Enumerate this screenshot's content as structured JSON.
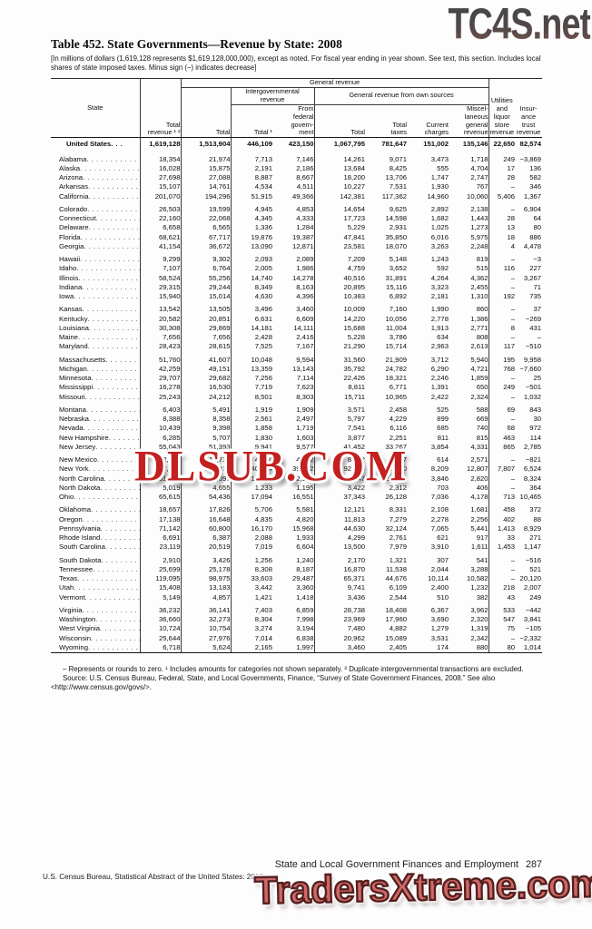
{
  "watermarks": {
    "top": "TC4S.net",
    "middle": "DLSUB.COM",
    "bottom": "TradersXtreme.com"
  },
  "title": "Table 452. State Governments—Revenue by State: 2008",
  "subtitle": "[In millions of dollars (1,619,128 represents $1,619,128,000,000), except as noted. For fiscal year ending in year shown. See text, this section. Includes local shares of state imposed taxes. Minus sign (−) indicates decrease]",
  "table": {
    "headers": {
      "state": "State",
      "total_revenue": "Total\nrevenue ¹ ²",
      "general_revenue": "General revenue",
      "general_total": "Total",
      "intergovernmental": "Intergovernmental\nrevenue",
      "intergov_total": "Total ¹",
      "from_federal": "From\nfederal\ngovern-\nment",
      "own_sources": "General revenue from own sources",
      "own_total": "Total",
      "total_taxes": "Total\ntaxes",
      "current_charges": "Current\ncharges",
      "misc_general": "Miscel-\nlaneous\ngeneral\nrevenue",
      "utilities": "Utilities\nand\nliquor\nstore\nrevenue",
      "insurance_trust": "Insur-\nance\ntrust\nrevenue"
    },
    "us_row": [
      "United States",
      "1,619,128",
      "1,513,904",
      "446,109",
      "423,150",
      "1,067,795",
      "781,647",
      "151,002",
      "135,146",
      "22,650",
      "82,574"
    ],
    "groups": [
      [
        [
          "Alabama",
          "18,354",
          "21,974",
          "7,713",
          "7,146",
          "14,261",
          "9,071",
          "3,473",
          "1,718",
          "249",
          "−3,869"
        ],
        [
          "Alaska",
          "16,028",
          "15,875",
          "2,191",
          "2,186",
          "13,684",
          "8,425",
          "555",
          "4,704",
          "17",
          "136"
        ],
        [
          "Arizona",
          "27,698",
          "27,088",
          "8,887",
          "8,667",
          "18,200",
          "13,706",
          "1,747",
          "2,747",
          "28",
          "582"
        ],
        [
          "Arkansas",
          "15,107",
          "14,761",
          "4,534",
          "4,511",
          "10,227",
          "7,531",
          "1,930",
          "767",
          "–",
          "346"
        ],
        [
          "California",
          "201,070",
          "194,296",
          "51,915",
          "49,366",
          "142,381",
          "117,362",
          "14,960",
          "10,060",
          "5,406",
          "1,367"
        ]
      ],
      [
        [
          "Colorado",
          "26,503",
          "19,599",
          "4,945",
          "4,853",
          "14,654",
          "9,625",
          "2,892",
          "2,138",
          "–",
          "6,904"
        ],
        [
          "Connecticut",
          "22,160",
          "22,068",
          "4,345",
          "4,333",
          "17,723",
          "14,598",
          "1,682",
          "1,443",
          "28",
          "64"
        ],
        [
          "Delaware",
          "6,658",
          "6,565",
          "1,336",
          "1,284",
          "5,229",
          "2,931",
          "1,025",
          "1,273",
          "13",
          "80"
        ],
        [
          "Florida",
          "68,621",
          "67,717",
          "19,876",
          "19,387",
          "47,841",
          "35,850",
          "6,016",
          "5,975",
          "18",
          "886"
        ],
        [
          "Georgia",
          "41,154",
          "36,672",
          "13,090",
          "12,871",
          "23,581",
          "18,070",
          "3,263",
          "2,248",
          "4",
          "4,478"
        ]
      ],
      [
        [
          "Hawaii",
          "9,299",
          "9,302",
          "2,093",
          "2,089",
          "7,209",
          "5,148",
          "1,243",
          "819",
          "–",
          "−3"
        ],
        [
          "Idaho",
          "7,107",
          "6,764",
          "2,005",
          "1,986",
          "4,759",
          "3,652",
          "592",
          "515",
          "116",
          "227"
        ],
        [
          "Illinois",
          "58,524",
          "55,256",
          "14,740",
          "14,278",
          "40,516",
          "31,891",
          "4,264",
          "4,362",
          "–",
          "3,267"
        ],
        [
          "Indiana",
          "29,315",
          "29,244",
          "8,349",
          "8,163",
          "20,895",
          "15,116",
          "3,323",
          "2,455",
          "–",
          "71"
        ],
        [
          "Iowa",
          "15,940",
          "15,014",
          "4,630",
          "4,396",
          "10,383",
          "6,892",
          "2,181",
          "1,310",
          "192",
          "735"
        ]
      ],
      [
        [
          "Kansas",
          "13,542",
          "13,505",
          "3,496",
          "3,460",
          "10,009",
          "7,160",
          "1,990",
          "860",
          "–",
          "37"
        ],
        [
          "Kentucky",
          "20,582",
          "20,851",
          "6,631",
          "6,609",
          "14,220",
          "10,056",
          "2,778",
          "1,386",
          "–",
          "−269"
        ],
        [
          "Louisiana",
          "30,308",
          "29,869",
          "14,181",
          "14,111",
          "15,688",
          "11,004",
          "1,913",
          "2,771",
          "8",
          "431"
        ],
        [
          "Maine",
          "7,656",
          "7,656",
          "2,428",
          "2,416",
          "5,228",
          "3,786",
          "634",
          "808",
          "–",
          "–"
        ],
        [
          "Maryland",
          "28,423",
          "28,815",
          "7,525",
          "7,167",
          "21,290",
          "15,714",
          "2,963",
          "2,613",
          "117",
          "−510"
        ]
      ],
      [
        [
          "Massachusetts",
          "51,760",
          "41,607",
          "10,048",
          "9,594",
          "31,560",
          "21,909",
          "3,712",
          "5,940",
          "195",
          "9,958"
        ],
        [
          "Michigan",
          "42,259",
          "49,151",
          "13,359",
          "13,143",
          "35,792",
          "24,782",
          "6,290",
          "4,721",
          "768",
          "−7,660"
        ],
        [
          "Minnesota",
          "29,707",
          "29,682",
          "7,256",
          "7,114",
          "22,426",
          "18,321",
          "2,246",
          "1,859",
          "–",
          "25"
        ],
        [
          "Mississippi",
          "16,278",
          "16,530",
          "7,719",
          "7,623",
          "8,811",
          "6,771",
          "1,391",
          "650",
          "249",
          "−501"
        ],
        [
          "Missouri",
          "25,243",
          "24,212",
          "8,501",
          "8,303",
          "15,711",
          "10,965",
          "2,422",
          "2,324",
          "–",
          "1,032"
        ]
      ],
      [
        [
          "Montana",
          "6,403",
          "5,491",
          "1,919",
          "1,909",
          "3,571",
          "2,458",
          "525",
          "588",
          "69",
          "843"
        ],
        [
          "Nebraska",
          "8,388",
          "8,358",
          "2,561",
          "2,497",
          "5,797",
          "4,229",
          "899",
          "669",
          "–",
          "30"
        ],
        [
          "Nevada",
          "10,439",
          "9,398",
          "1,858",
          "1,719",
          "7,541",
          "6,116",
          "685",
          "740",
          "68",
          "972"
        ],
        [
          "New Hampshire",
          "6,285",
          "5,707",
          "1,830",
          "1,603",
          "3,877",
          "2,251",
          "811",
          "815",
          "463",
          "114"
        ],
        [
          "New Jersey",
          "55,043",
          "51,393",
          "9,941",
          "9,577",
          "41,452",
          "33,267",
          "3,854",
          "4,331",
          "865",
          "2,785"
        ]
      ],
      [
        [
          "New Mexico",
          "12,895",
          "13,716",
          "4,954",
          "4,902",
          "8,762",
          "5,577",
          "614",
          "2,571",
          "–",
          "−821"
        ],
        [
          "New York",
          "147,340",
          "133,010",
          "40,624",
          "39,342",
          "92,386",
          "71,370",
          "8,209",
          "12,807",
          "7,807",
          "6,524"
        ],
        [
          "North Carolina",
          "51,421",
          "43,097",
          "13,650",
          "12,966",
          "29,447",
          "22,781",
          "3,846",
          "2,820",
          "–",
          "8,324"
        ],
        [
          "North Dakota",
          "5,019",
          "4,655",
          "1,233",
          "1,195",
          "3,422",
          "2,312",
          "703",
          "406",
          "–",
          "364"
        ],
        [
          "Ohio",
          "65,615",
          "54,436",
          "17,094",
          "16,551",
          "37,343",
          "26,128",
          "7,036",
          "4,178",
          "713",
          "10,465"
        ]
      ],
      [
        [
          "Oklahoma",
          "18,657",
          "17,826",
          "5,706",
          "5,581",
          "12,121",
          "8,331",
          "2,108",
          "1,681",
          "458",
          "372"
        ],
        [
          "Oregon",
          "17,138",
          "16,648",
          "4,835",
          "4,820",
          "11,813",
          "7,279",
          "2,278",
          "2,256",
          "402",
          "88"
        ],
        [
          "Pennsylvania",
          "71,142",
          "60,800",
          "16,170",
          "15,968",
          "44,630",
          "32,124",
          "7,065",
          "5,441",
          "1,413",
          "8,929"
        ],
        [
          "Rhode Island",
          "6,691",
          "6,387",
          "2,088",
          "1,933",
          "4,299",
          "2,761",
          "621",
          "917",
          "33",
          "271"
        ],
        [
          "South Carolina",
          "23,119",
          "20,519",
          "7,019",
          "6,604",
          "13,500",
          "7,979",
          "3,910",
          "1,611",
          "1,453",
          "1,147"
        ]
      ],
      [
        [
          "South Dakota",
          "2,910",
          "3,426",
          "1,256",
          "1,240",
          "2,170",
          "1,321",
          "307",
          "541",
          "–",
          "−516"
        ],
        [
          "Tennessee",
          "25,699",
          "25,178",
          "8,308",
          "8,187",
          "16,870",
          "11,538",
          "2,044",
          "3,288",
          "–",
          "521"
        ],
        [
          "Texas",
          "119,095",
          "98,975",
          "33,603",
          "29,487",
          "65,371",
          "44,676",
          "10,114",
          "10,582",
          "–",
          "20,120"
        ],
        [
          "Utah",
          "15,408",
          "13,183",
          "3,442",
          "3,360",
          "9,741",
          "6,109",
          "2,400",
          "1,232",
          "218",
          "2,007"
        ],
        [
          "Vermont",
          "5,149",
          "4,857",
          "1,421",
          "1,418",
          "3,436",
          "2,544",
          "510",
          "382",
          "43",
          "249"
        ]
      ],
      [
        [
          "Virginia",
          "36,232",
          "36,141",
          "7,403",
          "6,859",
          "28,738",
          "18,408",
          "6,367",
          "3,962",
          "533",
          "−442"
        ],
        [
          "Washington",
          "36,660",
          "32,273",
          "8,304",
          "7,998",
          "23,969",
          "17,960",
          "3,690",
          "2,320",
          "547",
          "3,841"
        ],
        [
          "West Virginia",
          "10,724",
          "10,754",
          "3,274",
          "3,194",
          "7,480",
          "4,882",
          "1,279",
          "1,319",
          "75",
          "−105"
        ],
        [
          "Wisconsin",
          "25,644",
          "27,976",
          "7,014",
          "6,838",
          "20,962",
          "15,089",
          "3,531",
          "2,342",
          "–",
          "−2,332"
        ],
        [
          "Wyoming",
          "6,718",
          "5,624",
          "2,165",
          "1,997",
          "3,460",
          "2,405",
          "174",
          "880",
          "80",
          "1,014"
        ]
      ]
    ]
  },
  "footnotes": {
    "note1": "– Represents or rounds to zero. ¹ Includes amounts for categories not shown separately. ² Duplicate intergovernmental transactions are excluded.",
    "source": "Source: U.S. Census Bureau, Federal, State, and Local Governments, Finance, “Survey of State Government Finances, 2008.” See also <http://www.census.gov/govs/>."
  },
  "page_footer": {
    "section_title": "State and Local Government Finances and Employment",
    "page_number": "287",
    "credit": "U.S. Census Bureau, Statistical Abstract of the United States: 2012"
  }
}
